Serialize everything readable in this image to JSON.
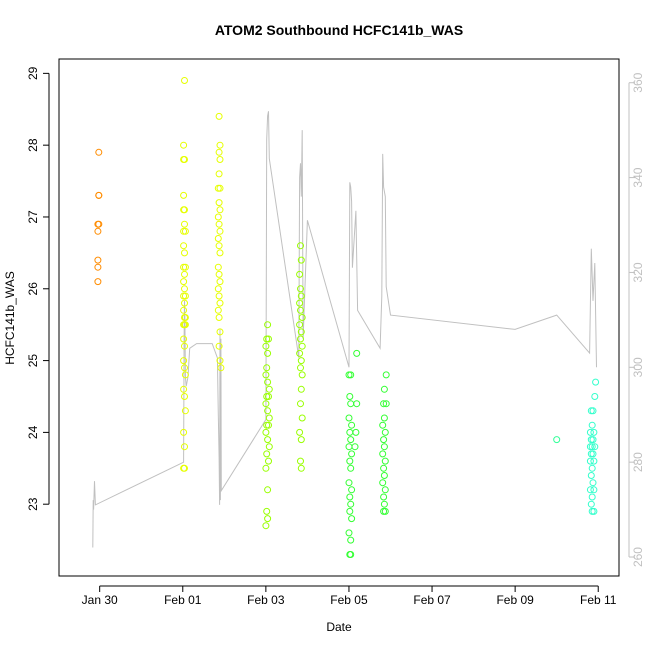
{
  "chart_data": {
    "type": "scatter",
    "title": "ATOM2 Southbound HCFC141b_WAS",
    "xlabel": "Date",
    "ylabel": "HCFC141b_WAS",
    "x_unit": "days",
    "x_ticks": [
      {
        "value": "2017-01-30",
        "label": "Jan 30"
      },
      {
        "value": "2017-02-01",
        "label": "Feb 01"
      },
      {
        "value": "2017-02-03",
        "label": "Feb 03"
      },
      {
        "value": "2017-02-05",
        "label": "Feb 05"
      },
      {
        "value": "2017-02-07",
        "label": "Feb 07"
      },
      {
        "value": "2017-02-09",
        "label": "Feb 09"
      },
      {
        "value": "2017-02-11",
        "label": "Feb 11"
      }
    ],
    "xlim": [
      "2017-01-29T00:30",
      "2017-02-11T12:00"
    ],
    "ylim": [
      22.0,
      29.2
    ],
    "y_ticks": [
      23,
      24,
      25,
      26,
      27,
      28,
      29
    ],
    "y2_ticks": [
      260,
      280,
      300,
      320,
      340,
      360
    ],
    "y2lim": [
      256,
      365
    ],
    "grid": false,
    "legend": "none",
    "colors": {
      "line": "#c0c0c0",
      "axis": "#000000",
      "right_axis": "#c0c0c0"
    },
    "series": [
      {
        "color": "#ff8c00",
        "points": [
          [
            "2017-01-29T23:30",
            27.9
          ],
          [
            "2017-01-29T23:30",
            27.3
          ],
          [
            "2017-01-29T23:30",
            26.9
          ],
          [
            "2017-01-29T23:00",
            26.9
          ],
          [
            "2017-01-29T23:00",
            26.8
          ],
          [
            "2017-01-29T23:00",
            26.4
          ],
          [
            "2017-01-29T23:00",
            26.3
          ],
          [
            "2017-01-29T23:00",
            26.1
          ],
          [
            "2017-01-29T23:30",
            27.3
          ]
        ]
      },
      {
        "color": "#e6ff00",
        "points": [
          [
            "2017-02-01T01:00",
            28.9
          ],
          [
            "2017-02-01T00:30",
            28.0
          ],
          [
            "2017-02-01T00:30",
            27.8
          ],
          [
            "2017-02-01T01:00",
            27.8
          ],
          [
            "2017-02-01T00:30",
            27.3
          ],
          [
            "2017-02-01T00:30",
            27.1
          ],
          [
            "2017-02-01T01:00",
            27.1
          ],
          [
            "2017-02-01T01:00",
            26.9
          ],
          [
            "2017-02-01T00:30",
            26.8
          ],
          [
            "2017-02-01T01:30",
            26.8
          ],
          [
            "2017-02-01T00:30",
            26.6
          ],
          [
            "2017-02-01T01:00",
            26.5
          ],
          [
            "2017-02-01T00:30",
            26.3
          ],
          [
            "2017-02-01T01:30",
            26.3
          ],
          [
            "2017-02-01T01:00",
            26.2
          ],
          [
            "2017-02-01T00:30",
            26.1
          ],
          [
            "2017-02-01T01:00",
            26.0
          ],
          [
            "2017-02-01T00:30",
            25.9
          ],
          [
            "2017-02-01T01:30",
            25.9
          ],
          [
            "2017-02-01T01:00",
            25.8
          ],
          [
            "2017-02-01T00:30",
            25.7
          ],
          [
            "2017-02-01T01:00",
            25.6
          ],
          [
            "2017-02-01T01:30",
            25.6
          ],
          [
            "2017-02-01T00:30",
            25.5
          ],
          [
            "2017-02-01T01:00",
            25.5
          ],
          [
            "2017-02-01T01:30",
            25.5
          ],
          [
            "2017-02-01T00:30",
            25.3
          ],
          [
            "2017-02-01T01:00",
            25.2
          ],
          [
            "2017-02-01T00:30",
            25.0
          ],
          [
            "2017-02-01T01:00",
            24.9
          ],
          [
            "2017-02-01T01:30",
            24.8
          ],
          [
            "2017-02-01T00:30",
            24.6
          ],
          [
            "2017-02-01T01:00",
            24.5
          ],
          [
            "2017-02-01T01:30",
            24.3
          ],
          [
            "2017-02-01T00:30",
            24.0
          ],
          [
            "2017-02-01T01:00",
            23.8
          ],
          [
            "2017-02-01T00:30",
            23.5
          ],
          [
            "2017-02-01T01:00",
            23.5
          ],
          [
            "2017-02-01T21:00",
            28.4
          ],
          [
            "2017-02-01T21:30",
            28.0
          ],
          [
            "2017-02-01T21:00",
            27.9
          ],
          [
            "2017-02-01T21:30",
            27.8
          ],
          [
            "2017-02-01T21:00",
            27.6
          ],
          [
            "2017-02-01T20:30",
            27.4
          ],
          [
            "2017-02-01T21:30",
            27.4
          ],
          [
            "2017-02-01T21:00",
            27.2
          ],
          [
            "2017-02-01T21:30",
            27.1
          ],
          [
            "2017-02-01T20:30",
            27.0
          ],
          [
            "2017-02-01T21:00",
            26.9
          ],
          [
            "2017-02-01T21:30",
            26.8
          ],
          [
            "2017-02-01T20:30",
            26.7
          ],
          [
            "2017-02-01T21:00",
            26.6
          ],
          [
            "2017-02-01T21:30",
            26.5
          ],
          [
            "2017-02-01T20:30",
            26.3
          ],
          [
            "2017-02-01T21:00",
            26.2
          ],
          [
            "2017-02-01T21:30",
            26.1
          ],
          [
            "2017-02-01T20:30",
            26.0
          ],
          [
            "2017-02-01T21:00",
            25.9
          ],
          [
            "2017-02-01T21:30",
            25.8
          ],
          [
            "2017-02-01T20:30",
            25.7
          ],
          [
            "2017-02-01T21:00",
            25.6
          ],
          [
            "2017-02-01T21:30",
            25.4
          ],
          [
            "2017-02-01T21:00",
            25.2
          ],
          [
            "2017-02-01T21:30",
            25.0
          ],
          [
            "2017-02-01T22:00",
            24.9
          ]
        ]
      },
      {
        "color": "#99ff00",
        "points": [
          [
            "2017-02-03T01:00",
            25.5
          ],
          [
            "2017-02-03T00:30",
            25.3
          ],
          [
            "2017-02-03T01:30",
            25.3
          ],
          [
            "2017-02-03T00:00",
            25.2
          ],
          [
            "2017-02-03T01:00",
            25.1
          ],
          [
            "2017-02-03T00:30",
            24.9
          ],
          [
            "2017-02-03T00:00",
            24.8
          ],
          [
            "2017-02-03T01:00",
            24.7
          ],
          [
            "2017-02-03T02:00",
            24.6
          ],
          [
            "2017-02-03T00:30",
            24.5
          ],
          [
            "2017-02-03T01:30",
            24.5
          ],
          [
            "2017-02-03T00:00",
            24.4
          ],
          [
            "2017-02-03T01:00",
            24.3
          ],
          [
            "2017-02-03T02:00",
            24.2
          ],
          [
            "2017-02-03T00:30",
            24.1
          ],
          [
            "2017-02-03T01:30",
            24.1
          ],
          [
            "2017-02-03T00:00",
            24.0
          ],
          [
            "2017-02-03T01:00",
            23.9
          ],
          [
            "2017-02-03T02:00",
            23.8
          ],
          [
            "2017-02-03T00:30",
            23.7
          ],
          [
            "2017-02-03T01:30",
            23.6
          ],
          [
            "2017-02-03T00:00",
            23.5
          ],
          [
            "2017-02-03T01:00",
            23.2
          ],
          [
            "2017-02-03T00:30",
            22.9
          ],
          [
            "2017-02-03T01:00",
            22.8
          ],
          [
            "2017-02-03T00:00",
            22.7
          ],
          [
            "2017-02-03T20:00",
            26.6
          ],
          [
            "2017-02-03T20:30",
            26.4
          ],
          [
            "2017-02-03T19:30",
            26.2
          ],
          [
            "2017-02-03T20:00",
            26.0
          ],
          [
            "2017-02-03T20:30",
            25.9
          ],
          [
            "2017-02-03T19:30",
            25.8
          ],
          [
            "2017-02-03T20:00",
            25.7
          ],
          [
            "2017-02-03T21:00",
            25.6
          ],
          [
            "2017-02-03T19:30",
            25.5
          ],
          [
            "2017-02-03T20:30",
            25.4
          ],
          [
            "2017-02-03T20:00",
            25.3
          ],
          [
            "2017-02-03T21:00",
            25.2
          ],
          [
            "2017-02-03T19:30",
            25.1
          ],
          [
            "2017-02-03T20:30",
            25.0
          ],
          [
            "2017-02-03T20:00",
            24.9
          ],
          [
            "2017-02-03T21:00",
            24.8
          ],
          [
            "2017-02-03T20:30",
            24.6
          ],
          [
            "2017-02-03T20:00",
            24.4
          ],
          [
            "2017-02-03T21:00",
            24.2
          ],
          [
            "2017-02-03T19:30",
            24.0
          ],
          [
            "2017-02-03T20:30",
            23.9
          ],
          [
            "2017-02-03T20:00",
            23.6
          ],
          [
            "2017-02-03T20:30",
            23.5
          ]
        ]
      },
      {
        "color": "#33ff33",
        "points": [
          [
            "2017-02-05T00:00",
            24.8
          ],
          [
            "2017-02-05T01:00",
            24.8
          ],
          [
            "2017-02-05T00:30",
            24.5
          ],
          [
            "2017-02-05T01:00",
            24.4
          ],
          [
            "2017-02-05T00:00",
            24.2
          ],
          [
            "2017-02-05T01:30",
            24.1
          ],
          [
            "2017-02-05T00:30",
            24.0
          ],
          [
            "2017-02-05T01:00",
            23.9
          ],
          [
            "2017-02-05T00:00",
            23.8
          ],
          [
            "2017-02-05T01:30",
            23.7
          ],
          [
            "2017-02-05T00:30",
            23.6
          ],
          [
            "2017-02-05T01:00",
            23.5
          ],
          [
            "2017-02-05T00:00",
            23.3
          ],
          [
            "2017-02-05T01:30",
            23.2
          ],
          [
            "2017-02-05T00:30",
            23.1
          ],
          [
            "2017-02-05T01:00",
            23.0
          ],
          [
            "2017-02-05T00:30",
            22.9
          ],
          [
            "2017-02-05T01:30",
            22.8
          ],
          [
            "2017-02-05T00:00",
            22.6
          ],
          [
            "2017-02-05T01:00",
            22.5
          ],
          [
            "2017-02-05T00:30",
            22.3
          ],
          [
            "2017-02-05T01:00",
            22.3
          ],
          [
            "2017-02-05T04:30",
            25.1
          ],
          [
            "2017-02-05T04:30",
            24.4
          ],
          [
            "2017-02-05T04:00",
            24.0
          ],
          [
            "2017-02-05T03:30",
            23.8
          ],
          [
            "2017-02-05T20:00",
            24.4
          ],
          [
            "2017-02-05T20:30",
            24.2
          ],
          [
            "2017-02-05T19:30",
            24.1
          ],
          [
            "2017-02-05T21:00",
            24.0
          ],
          [
            "2017-02-05T20:00",
            23.9
          ],
          [
            "2017-02-05T20:30",
            23.8
          ],
          [
            "2017-02-05T19:30",
            23.7
          ],
          [
            "2017-02-05T21:00",
            23.6
          ],
          [
            "2017-02-05T20:00",
            23.5
          ],
          [
            "2017-02-05T20:30",
            23.4
          ],
          [
            "2017-02-05T19:30",
            23.3
          ],
          [
            "2017-02-05T21:00",
            23.2
          ],
          [
            "2017-02-05T20:00",
            23.1
          ],
          [
            "2017-02-05T20:30",
            23.0
          ],
          [
            "2017-02-05T20:00",
            22.9
          ],
          [
            "2017-02-05T21:00",
            22.9
          ],
          [
            "2017-02-05T21:30",
            24.8
          ],
          [
            "2017-02-05T20:30",
            24.6
          ],
          [
            "2017-02-05T21:30",
            24.4
          ]
        ]
      },
      {
        "color": "#33ff99",
        "points": [
          [
            "2017-02-10T00:00",
            23.9
          ]
        ]
      },
      {
        "color": "#33ffcc",
        "points": [
          [
            "2017-02-10T20:00",
            24.3
          ],
          [
            "2017-02-10T21:00",
            24.3
          ],
          [
            "2017-02-10T20:30",
            24.1
          ],
          [
            "2017-02-10T19:30",
            24.0
          ],
          [
            "2017-02-10T21:30",
            24.0
          ],
          [
            "2017-02-10T20:00",
            23.9
          ],
          [
            "2017-02-10T21:00",
            23.9
          ],
          [
            "2017-02-10T19:30",
            23.8
          ],
          [
            "2017-02-10T20:30",
            23.8
          ],
          [
            "2017-02-10T22:00",
            23.8
          ],
          [
            "2017-02-10T20:00",
            23.7
          ],
          [
            "2017-02-10T21:00",
            23.7
          ],
          [
            "2017-02-10T19:30",
            23.6
          ],
          [
            "2017-02-10T21:30",
            23.6
          ],
          [
            "2017-02-10T20:30",
            23.5
          ],
          [
            "2017-02-10T20:00",
            23.4
          ],
          [
            "2017-02-10T21:00",
            23.3
          ],
          [
            "2017-02-10T19:30",
            23.2
          ],
          [
            "2017-02-10T21:30",
            23.2
          ],
          [
            "2017-02-10T20:30",
            23.1
          ],
          [
            "2017-02-10T20:00",
            23.0
          ],
          [
            "2017-02-10T20:30",
            22.9
          ],
          [
            "2017-02-10T21:30",
            22.9
          ],
          [
            "2017-02-10T22:30",
            24.7
          ],
          [
            "2017-02-10T22:00",
            24.5
          ]
        ]
      }
    ],
    "line": {
      "axis": "right",
      "points": [
        [
          "2017-01-29T20:00",
          262
        ],
        [
          "2017-01-29T20:15",
          272
        ],
        [
          "2017-01-29T20:30",
          270
        ],
        [
          "2017-01-29T21:00",
          276
        ],
        [
          "2017-01-29T21:30",
          271
        ],
        [
          "2017-02-01T00:30",
          280
        ],
        [
          "2017-02-01T00:45",
          306
        ],
        [
          "2017-02-01T01:00",
          314
        ],
        [
          "2017-02-01T01:15",
          310
        ],
        [
          "2017-02-01T01:30",
          298
        ],
        [
          "2017-02-01T02:00",
          296
        ],
        [
          "2017-02-01T03:00",
          298
        ],
        [
          "2017-02-01T04:00",
          304
        ],
        [
          "2017-02-01T08:00",
          305
        ],
        [
          "2017-02-01T12:00",
          305
        ],
        [
          "2017-02-01T17:00",
          305
        ],
        [
          "2017-02-01T20:00",
          302
        ],
        [
          "2017-02-01T20:30",
          290
        ],
        [
          "2017-02-01T21:00",
          281
        ],
        [
          "2017-02-01T21:15",
          271
        ],
        [
          "2017-02-01T21:30",
          308
        ],
        [
          "2017-02-01T21:45",
          272
        ],
        [
          "2017-02-01T22:00",
          306
        ],
        [
          "2017-02-01T22:15",
          274
        ],
        [
          "2017-02-03T00:00",
          289
        ],
        [
          "2017-02-03T00:30",
          348
        ],
        [
          "2017-02-03T01:00",
          353
        ],
        [
          "2017-02-03T01:30",
          354
        ],
        [
          "2017-02-03T02:00",
          344
        ],
        [
          "2017-02-03T19:00",
          302
        ],
        [
          "2017-02-03T19:30",
          340
        ],
        [
          "2017-02-03T20:00",
          343
        ],
        [
          "2017-02-03T20:30",
          336
        ],
        [
          "2017-02-03T21:00",
          350
        ],
        [
          "2017-02-03T21:30",
          306
        ],
        [
          "2017-02-04T00:00",
          331
        ],
        [
          "2017-02-05T00:00",
          300
        ],
        [
          "2017-02-05T00:30",
          339
        ],
        [
          "2017-02-05T01:00",
          338
        ],
        [
          "2017-02-05T01:30",
          335
        ],
        [
          "2017-02-05T02:00",
          321
        ],
        [
          "2017-02-05T04:00",
          333
        ],
        [
          "2017-02-05T05:00",
          312
        ],
        [
          "2017-02-05T18:00",
          304
        ],
        [
          "2017-02-05T19:00",
          315
        ],
        [
          "2017-02-05T19:30",
          345
        ],
        [
          "2017-02-05T20:00",
          338
        ],
        [
          "2017-02-05T21:00",
          336
        ],
        [
          "2017-02-05T21:30",
          317
        ],
        [
          "2017-02-06T00:00",
          311
        ],
        [
          "2017-02-09T00:00",
          308
        ],
        [
          "2017-02-10T00:00",
          311
        ],
        [
          "2017-02-10T19:00",
          303
        ],
        [
          "2017-02-10T20:00",
          325
        ],
        [
          "2017-02-10T21:00",
          314
        ],
        [
          "2017-02-10T22:00",
          322
        ],
        [
          "2017-02-10T23:00",
          300
        ]
      ]
    }
  }
}
